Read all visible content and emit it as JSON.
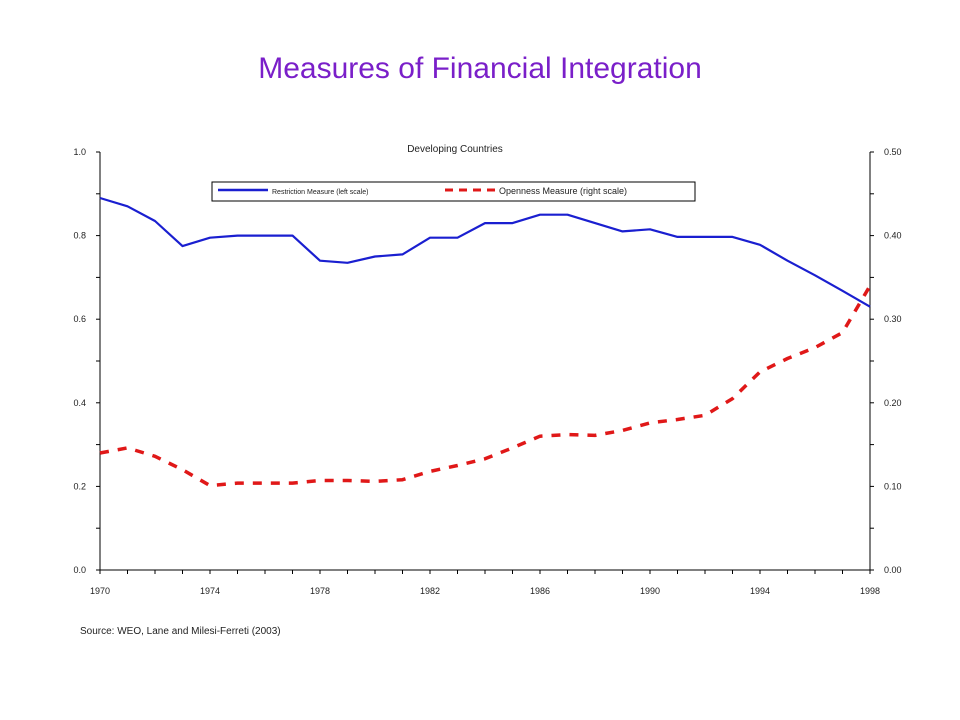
{
  "page": {
    "title": "Measures of Financial Integration",
    "source": "Source: WEO, Lane and Milesi-Ferreti (2003)"
  },
  "colors": {
    "title": "#7a1fc9",
    "restriction": "#1a1fd0",
    "openness": "#e01818",
    "axis": "#000000"
  },
  "chart_data": {
    "type": "line",
    "title": "Developing Countries",
    "x": [
      1970,
      1971,
      1972,
      1973,
      1974,
      1975,
      1976,
      1977,
      1978,
      1979,
      1980,
      1981,
      1982,
      1983,
      1984,
      1985,
      1986,
      1987,
      1988,
      1989,
      1990,
      1991,
      1992,
      1993,
      1994,
      1995,
      1996,
      1997,
      1998
    ],
    "xlim": [
      1970,
      1998
    ],
    "x_tick_labels": [
      "1970",
      "1974",
      "1978",
      "1982",
      "1986",
      "1990",
      "1994",
      "1998"
    ],
    "y_left": {
      "lim": [
        0,
        1.0
      ],
      "tick_labels": [
        "0.0",
        "0.2",
        "0.4",
        "0.6",
        "0.8",
        "1.0"
      ]
    },
    "y_right": {
      "lim": [
        0,
        0.5
      ],
      "tick_labels": [
        "0.00",
        "0.10",
        "0.20",
        "0.30",
        "0.40",
        "0.50"
      ]
    },
    "series": [
      {
        "name": "Restriction Measure (left scale)",
        "axis": "left",
        "style": "solid",
        "values": [
          0.89,
          0.87,
          0.835,
          0.775,
          0.795,
          0.8,
          0.8,
          0.8,
          0.74,
          0.735,
          0.75,
          0.755,
          0.795,
          0.795,
          0.83,
          0.83,
          0.85,
          0.85,
          0.83,
          0.81,
          0.815,
          0.797,
          0.797,
          0.797,
          0.778,
          0.74,
          0.705,
          0.668,
          0.63
        ]
      },
      {
        "name": "Openness Measure (right scale)",
        "axis": "right",
        "style": "dashed",
        "values": [
          0.14,
          0.146,
          0.136,
          0.12,
          0.101,
          0.104,
          0.104,
          0.104,
          0.107,
          0.107,
          0.106,
          0.108,
          0.118,
          0.125,
          0.133,
          0.146,
          0.16,
          0.162,
          0.161,
          0.167,
          0.176,
          0.18,
          0.185,
          0.205,
          0.237,
          0.253,
          0.266,
          0.284,
          0.34
        ]
      }
    ],
    "legend": "top"
  }
}
